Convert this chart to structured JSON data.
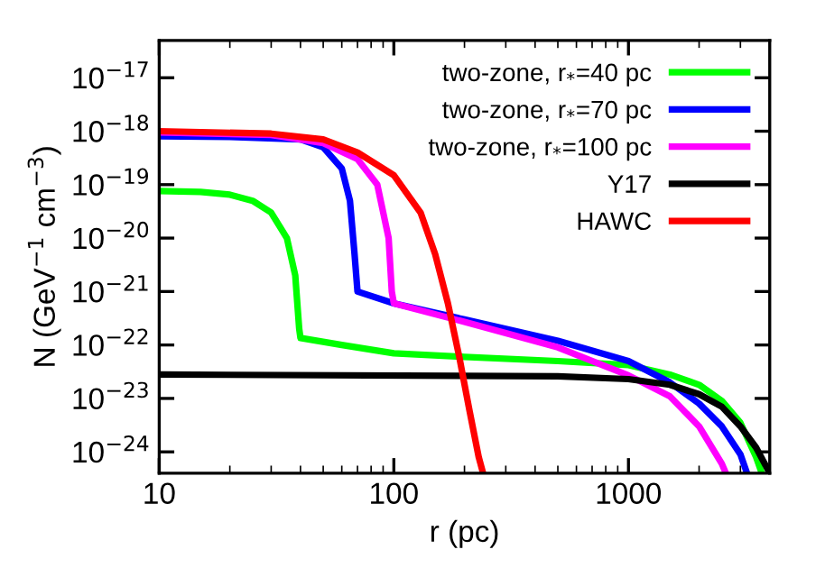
{
  "chart_data": {
    "type": "line",
    "xlabel": "r (pc)",
    "ylabel": "N (GeV$^{−1}$ cm$^{−3}$)",
    "log": "xy",
    "legend": "top right",
    "grid": false,
    "marker": "none",
    "line_style": "solid",
    "xlim": [
      10,
      4000
    ],
    "xticks": [
      10,
      100,
      1000
    ],
    "ylim": [
      4e-25,
      5e-17
    ],
    "yticks": [
      {
        "value": 1e-24,
        "label": "10$^{−24}$"
      },
      {
        "value": 1e-23,
        "label": "10$^{−23}$"
      },
      {
        "value": 1e-22,
        "label": "10$^{−22}$"
      },
      {
        "value": 1e-21,
        "label": "10$^{−21}$"
      },
      {
        "value": 1e-20,
        "label": "10$^{−20}$"
      },
      {
        "value": 1e-19,
        "label": "10$^{−19}$"
      },
      {
        "value": 1e-18,
        "label": "10$^{−18}$"
      },
      {
        "value": 1e-17,
        "label": "10$^{−17}$"
      }
    ],
    "series": [
      {
        "name": "two-zone, r$_{*}$=40 pc",
        "color": "#00ff00",
        "x": [
          10,
          15,
          20,
          25,
          30,
          35,
          38,
          39.5,
          40,
          60,
          100,
          200,
          500,
          1000,
          1500,
          2000,
          2500,
          3000,
          3500,
          3700
        ],
        "values": [
          7.6e-20,
          7.3e-20,
          6.5e-20,
          5e-20,
          3e-20,
          1e-20,
          2e-21,
          2e-22,
          1.35e-22,
          1e-22,
          7e-23,
          6e-23,
          5e-23,
          4.2e-23,
          2.8e-23,
          1.8e-23,
          9e-24,
          3.5e-24,
          8e-25,
          4e-25
        ]
      },
      {
        "name": "two-zone, r$_{*}$=70 pc",
        "color": "#0000ff",
        "x": [
          10,
          20,
          40,
          50,
          60,
          65,
          68,
          70,
          100,
          200,
          500,
          1000,
          1500,
          2000,
          2500,
          3000,
          3200
        ],
        "values": [
          8e-19,
          7.8e-19,
          7e-19,
          5e-19,
          2e-19,
          5e-20,
          5e-21,
          1e-21,
          6e-22,
          3e-22,
          1.2e-22,
          5e-23,
          2e-23,
          8e-24,
          3e-24,
          9e-25,
          4e-25
        ]
      },
      {
        "name": "two-zone, r$_{*}$=100 pc",
        "color": "#ff00ff",
        "x": [
          10,
          30,
          50,
          70,
          85,
          95,
          98,
          100,
          200,
          500,
          1000,
          1500,
          2000,
          2500,
          2600
        ],
        "values": [
          9.5e-19,
          8.5e-19,
          6e-19,
          3e-19,
          1e-19,
          1e-20,
          1e-21,
          6e-22,
          2.7e-22,
          9e-23,
          2.7e-23,
          1.1e-23,
          3e-24,
          6e-25,
          4e-25
        ]
      },
      {
        "name": "Y17",
        "color": "#000000",
        "x": [
          10,
          500,
          1000,
          1500,
          2000,
          2500,
          3000,
          3500,
          4000
        ],
        "values": [
          2.8e-23,
          2.6e-23,
          2.3e-23,
          1.8e-23,
          1.2e-23,
          7e-24,
          3e-24,
          1.2e-24,
          4e-25
        ]
      },
      {
        "name": "HAWC",
        "color": "#ff0000",
        "x": [
          10,
          30,
          50,
          70,
          100,
          130,
          150,
          170,
          190,
          210,
          230,
          240
        ],
        "values": [
          1e-18,
          9e-19,
          7e-19,
          4e-19,
          1.5e-19,
          3e-20,
          5e-21,
          6e-22,
          6e-23,
          6e-24,
          8e-25,
          4e-25
        ]
      }
    ]
  }
}
